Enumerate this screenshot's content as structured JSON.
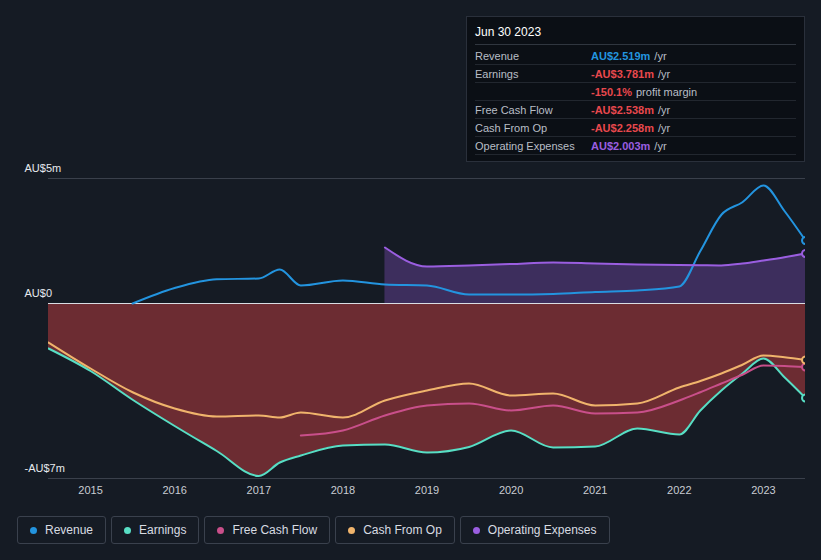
{
  "chart_data": {
    "type": "line",
    "x": [
      2014.5,
      2015.0,
      2015.5,
      2016.0,
      2016.5,
      2017.0,
      2017.25,
      2017.5,
      2018.0,
      2018.5,
      2019.0,
      2019.5,
      2020.0,
      2020.5,
      2021.0,
      2021.5,
      2022.0,
      2022.25,
      2022.5,
      2022.75,
      2023.0,
      2023.25,
      2023.5
    ],
    "xlim": [
      2014.5,
      2023.5
    ],
    "xticks": [
      2015,
      2016,
      2017,
      2018,
      2019,
      2020,
      2021,
      2022,
      2023
    ],
    "ylim": [
      -7,
      5
    ],
    "yticks": [
      {
        "value": 5,
        "label": "AU$5m"
      },
      {
        "value": 0,
        "label": "AU$0"
      },
      {
        "value": -7,
        "label": "-AU$7m"
      }
    ],
    "grid": true,
    "series": [
      {
        "name": "Revenue",
        "color": "#2394df",
        "type": "line",
        "values": [
          null,
          null,
          0.0,
          0.62,
          0.97,
          1.0,
          1.36,
          0.72,
          0.92,
          0.76,
          0.72,
          0.36,
          0.36,
          0.38,
          0.46,
          0.52,
          0.68,
          2.1,
          3.55,
          4.05,
          4.72,
          3.7,
          2.52
        ]
      },
      {
        "name": "Earnings",
        "color": "#58dec4",
        "type": "area",
        "values": [
          -1.8,
          -2.7,
          -3.85,
          -4.9,
          -5.9,
          -6.9,
          -6.36,
          -6.08,
          -5.68,
          -5.64,
          -5.96,
          -5.74,
          -5.08,
          -5.76,
          -5.72,
          -5.0,
          -5.24,
          -4.28,
          -3.48,
          -2.8,
          -2.2,
          -2.95,
          -3.78
        ]
      },
      {
        "name": "Free Cash Flow",
        "color": "#c94f8a",
        "type": "line",
        "values": [
          null,
          null,
          null,
          null,
          null,
          null,
          null,
          -5.28,
          -5.08,
          -4.48,
          -4.08,
          -4.0,
          -4.28,
          -4.08,
          -4.4,
          -4.36,
          -3.88,
          -3.55,
          -3.2,
          -2.85,
          -2.48,
          -2.5,
          -2.54
        ]
      },
      {
        "name": "Cash From Op",
        "color": "#f0b46c",
        "type": "line",
        "values": [
          -1.56,
          -2.6,
          -3.55,
          -4.2,
          -4.52,
          -4.48,
          -4.56,
          -4.36,
          -4.56,
          -3.88,
          -3.48,
          -3.2,
          -3.68,
          -3.6,
          -4.08,
          -4.0,
          -3.36,
          -3.1,
          -2.8,
          -2.45,
          -2.08,
          -2.15,
          -2.26
        ]
      },
      {
        "name": "Operating Expenses",
        "color": "#9a5ee0",
        "type": "area",
        "values": [
          null,
          null,
          null,
          null,
          null,
          null,
          null,
          null,
          null,
          2.24,
          1.48,
          1.52,
          1.58,
          1.64,
          1.6,
          1.56,
          1.54,
          1.53,
          1.52,
          1.6,
          1.72,
          1.85,
          2.0
        ]
      }
    ],
    "tooltip": {
      "title": "Jun 30 2023",
      "rows": [
        {
          "label": "Revenue",
          "value": "AU$2.519m",
          "unit": "/yr",
          "color": "#2394df"
        },
        {
          "label": "Earnings",
          "value": "-AU$3.781m",
          "unit": "/yr",
          "color": "#e8484d"
        },
        {
          "value": "-150.1%",
          "unit": "profit margin",
          "color": "#e8484d"
        },
        {
          "label": "Free Cash Flow",
          "value": "-AU$2.538m",
          "unit": "/yr",
          "color": "#e8484d"
        },
        {
          "label": "Cash From Op",
          "value": "-AU$2.258m",
          "unit": "/yr",
          "color": "#e8484d"
        },
        {
          "label": "Operating Expenses",
          "value": "AU$2.003m",
          "unit": "/yr",
          "color": "#9a5ee0"
        }
      ]
    }
  }
}
